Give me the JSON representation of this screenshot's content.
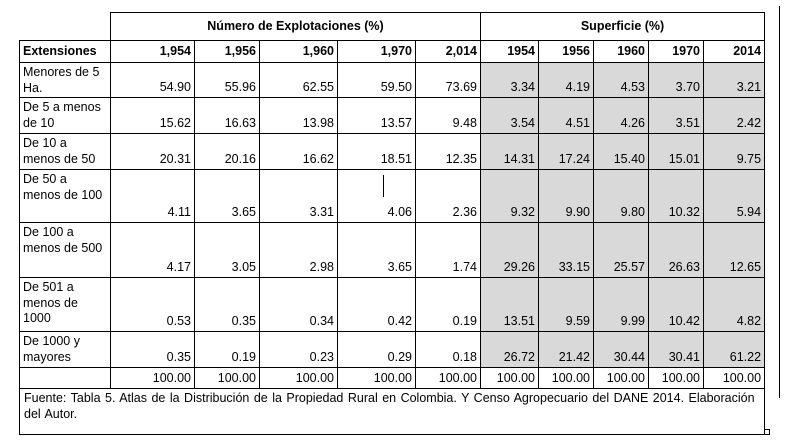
{
  "table": {
    "group_headers": {
      "explotaciones": "Número de Explotaciones (%)",
      "superficie": "Superficie (%)"
    },
    "column_headers": [
      "Extensiones",
      "1,954",
      "1,956",
      "1,960",
      "1,970",
      "2,014",
      "1954",
      "1956",
      "1960",
      "1970",
      "2014"
    ],
    "rows": [
      {
        "label": "Menores de 5 Ha.",
        "values": [
          "54.90",
          "55.96",
          "62.55",
          "59.50",
          "73.69",
          "3.34",
          "4.19",
          "4.53",
          "3.70",
          "3.21"
        ]
      },
      {
        "label": "De 5 a menos de 10",
        "values": [
          "15.62",
          "16.63",
          "13.98",
          "13.57",
          "9.48",
          "3.54",
          "4.51",
          "4.26",
          "3.51",
          "2.42"
        ]
      },
      {
        "label": "De 10 a menos de 50",
        "values": [
          "20.31",
          "20.16",
          "16.62",
          "18.51",
          "12.35",
          "14.31",
          "17.24",
          "15.40",
          "15.01",
          "9.75"
        ]
      },
      {
        "label": "De 50 a menos de 100",
        "values": [
          "4.11",
          "3.65",
          "3.31",
          "4.06",
          "2.36",
          "9.32",
          "9.90",
          "9.80",
          "10.32",
          "5.94"
        ]
      },
      {
        "label": "De 100 a menos de 500",
        "values": [
          "4.17",
          "3.05",
          "2.98",
          "3.65",
          "1.74",
          "29.26",
          "33.15",
          "25.57",
          "26.63",
          "12.65"
        ]
      },
      {
        "label": "De 501 a menos de 1000",
        "values": [
          "0.53",
          "0.35",
          "0.34",
          "0.42",
          "0.19",
          "13.51",
          "9.59",
          "9.99",
          "10.42",
          "4.82"
        ]
      },
      {
        "label": "De 1000 y mayores",
        "values": [
          "0.35",
          "0.19",
          "0.23",
          "0.29",
          "0.18",
          "26.72",
          "21.42",
          "30.44",
          "30.41",
          "61.22"
        ]
      }
    ],
    "totals": [
      "100.00",
      "100.00",
      "100.00",
      "100.00",
      "100.00",
      "100.00",
      "100.00",
      "100.00",
      "100.00",
      "100.00"
    ],
    "footnote": "Fuente: Tabla 5. Atlas de la Distribución de la Propiedad Rural en Colombia. Y Censo Agropecuario del DANE 2014. Elaboración del Autor."
  },
  "colors": {
    "shaded_cells": "#d9d9d9",
    "border": "#000000"
  }
}
